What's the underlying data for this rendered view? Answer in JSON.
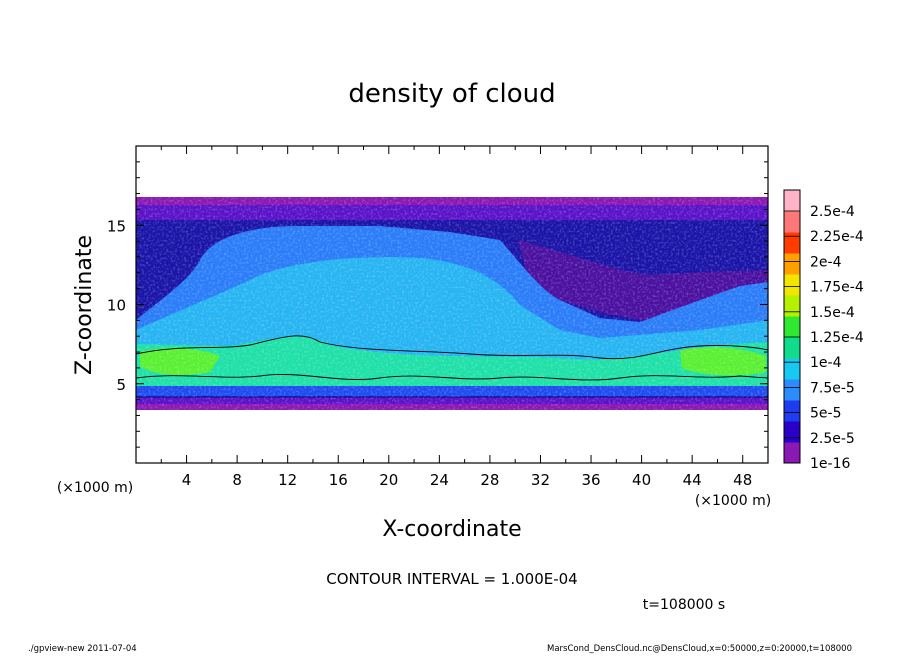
{
  "chart_data": {
    "type": "heatmap",
    "title": "density of cloud",
    "xlabel": "X-coordinate",
    "ylabel": "Z-coordinate",
    "x_unit_left": "(×1000 m)",
    "x_unit_right": "(×1000 m)",
    "xlim": [
      0,
      50
    ],
    "ylim": [
      0,
      20
    ],
    "x_ticks": [
      4,
      8,
      12,
      16,
      20,
      24,
      28,
      32,
      36,
      40,
      44,
      48
    ],
    "y_ticks": [
      5,
      10,
      15
    ],
    "colorbar": {
      "labels": [
        "1e-16",
        "2.5e-5",
        "5e-5",
        "7.5e-5",
        "1e-4",
        "1.25e-4",
        "1.5e-4",
        "1.75e-4",
        "2e-4",
        "2.25e-4",
        "2.5e-4"
      ],
      "colors": [
        "#8a18b4",
        "#2a00c8",
        "#1e3cf0",
        "#2a8cff",
        "#18c8f0",
        "#10dc8c",
        "#30e830",
        "#b4f000",
        "#f0e600",
        "#ffa000",
        "#ff3c00",
        "#ff7878",
        "#ffb4c8"
      ]
    },
    "contour_interval": "CONTOUR INTERVAL = 1.000E-04",
    "time_label": "t=108000 s"
  },
  "footer": {
    "left": "./gpview-new   2011-07-04",
    "right": "MarsCond_DensCloud.nc@DensCloud,x=0:50000,z=0:20000,t=108000"
  }
}
